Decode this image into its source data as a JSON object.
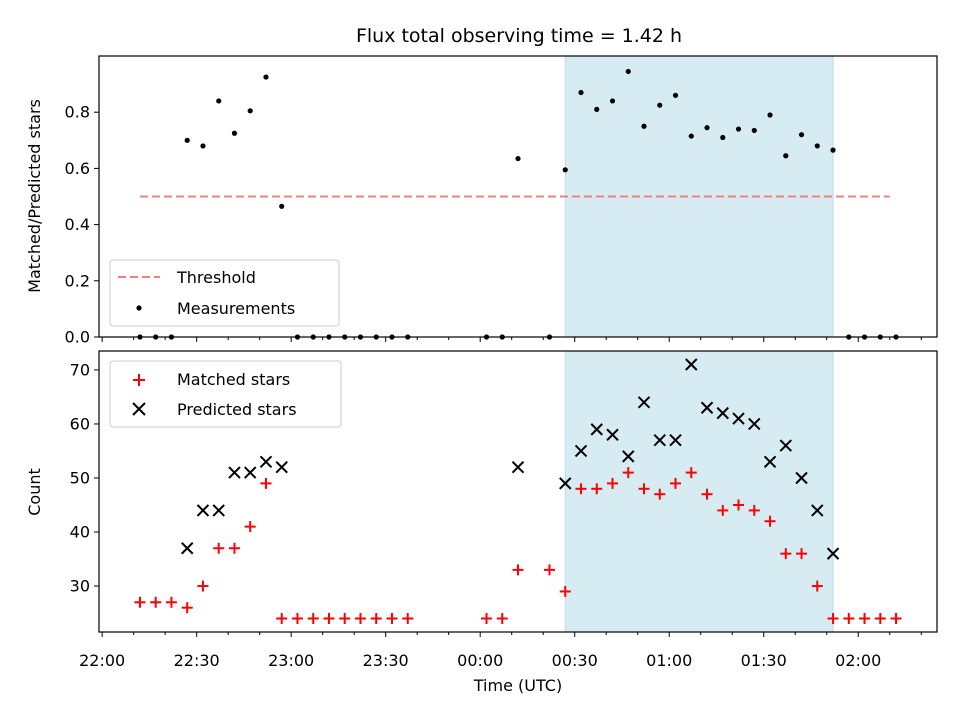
{
  "chart_data": [
    {
      "type": "scatter",
      "title": "Flux total observing time = 1.42 h",
      "ylabel": "Matched/Predicted stars",
      "xlabel": "",
      "ylim": [
        0,
        1.0
      ],
      "yticks": [
        0.0,
        0.2,
        0.4,
        0.6,
        0.8
      ],
      "ytick_labels": [
        "0.0",
        "0.2",
        "0.4",
        "0.6",
        "0.8"
      ],
      "x_unit": "time (UTC), minutes after 22:00",
      "shaded_span": {
        "x_start": 147,
        "x_end": 232,
        "color": "#add8e6"
      },
      "threshold": {
        "name": "Threshold",
        "value": 0.5,
        "x_start": 12,
        "x_end": 250,
        "color": "#f08080",
        "style": "dashed"
      },
      "legend": {
        "placement": "lower-left",
        "entries": [
          "Threshold",
          "Measurements"
        ]
      },
      "series": [
        {
          "name": "Measurements",
          "marker": "dot",
          "color": "#000000",
          "points": [
            [
              12,
              0.0
            ],
            [
              17,
              0.0
            ],
            [
              22,
              0.0
            ],
            [
              27,
              0.7
            ],
            [
              32,
              0.68
            ],
            [
              37,
              0.84
            ],
            [
              42,
              0.725
            ],
            [
              47,
              0.805
            ],
            [
              52,
              0.925
            ],
            [
              57,
              0.465
            ],
            [
              62,
              0.0
            ],
            [
              67,
              0.0
            ],
            [
              72,
              0.0
            ],
            [
              77,
              0.0
            ],
            [
              82,
              0.0
            ],
            [
              87,
              0.0
            ],
            [
              92,
              0.0
            ],
            [
              97,
              0.0
            ],
            [
              122,
              0.0
            ],
            [
              127,
              0.0
            ],
            [
              132,
              0.635
            ],
            [
              142,
              0.0
            ],
            [
              147,
              0.595
            ],
            [
              152,
              0.87
            ],
            [
              157,
              0.81
            ],
            [
              162,
              0.84
            ],
            [
              167,
              0.945
            ],
            [
              172,
              0.75
            ],
            [
              177,
              0.825
            ],
            [
              182,
              0.86
            ],
            [
              187,
              0.715
            ],
            [
              192,
              0.745
            ],
            [
              197,
              0.71
            ],
            [
              202,
              0.74
            ],
            [
              207,
              0.735
            ],
            [
              212,
              0.79
            ],
            [
              217,
              0.645
            ],
            [
              222,
              0.72
            ],
            [
              227,
              0.68
            ],
            [
              232,
              0.665
            ],
            [
              237,
              0.0
            ],
            [
              242,
              0.0
            ],
            [
              247,
              0.0
            ],
            [
              252,
              0.0
            ]
          ]
        }
      ]
    },
    {
      "type": "scatter",
      "title": "",
      "xlabel": "Time (UTC)",
      "ylabel": "Count",
      "ylim": [
        21.5,
        73.5
      ],
      "yticks": [
        30,
        40,
        50,
        60,
        70
      ],
      "ytick_labels": [
        "30",
        "40",
        "50",
        "60",
        "70"
      ],
      "xlim": [
        -1,
        265
      ],
      "xticks": [
        0,
        30,
        60,
        90,
        120,
        150,
        180,
        210,
        240
      ],
      "xtick_labels": [
        "22:00",
        "22:30",
        "23:00",
        "23:30",
        "00:00",
        "00:30",
        "01:00",
        "01:30",
        "02:00"
      ],
      "x_unit": "time (UTC), minutes after 22:00",
      "shaded_span": {
        "x_start": 147,
        "x_end": 232,
        "color": "#add8e6"
      },
      "legend": {
        "placement": "upper-left",
        "entries": [
          "Matched stars",
          "Predicted stars"
        ]
      },
      "series": [
        {
          "name": "Matched stars",
          "marker": "plus",
          "color": "#ff0000",
          "points": [
            [
              12,
              27
            ],
            [
              17,
              27
            ],
            [
              22,
              27
            ],
            [
              27,
              26
            ],
            [
              32,
              30
            ],
            [
              37,
              37
            ],
            [
              42,
              37
            ],
            [
              47,
              41
            ],
            [
              52,
              49
            ],
            [
              57,
              24
            ],
            [
              62,
              24
            ],
            [
              67,
              24
            ],
            [
              72,
              24
            ],
            [
              77,
              24
            ],
            [
              82,
              24
            ],
            [
              87,
              24
            ],
            [
              92,
              24
            ],
            [
              97,
              24
            ],
            [
              122,
              24
            ],
            [
              127,
              24
            ],
            [
              132,
              33
            ],
            [
              142,
              33
            ],
            [
              147,
              29
            ],
            [
              152,
              48
            ],
            [
              157,
              48
            ],
            [
              162,
              49
            ],
            [
              167,
              51
            ],
            [
              172,
              48
            ],
            [
              177,
              47
            ],
            [
              182,
              49
            ],
            [
              187,
              51
            ],
            [
              192,
              47
            ],
            [
              197,
              44
            ],
            [
              202,
              45
            ],
            [
              207,
              44
            ],
            [
              212,
              42
            ],
            [
              217,
              36
            ],
            [
              222,
              36
            ],
            [
              227,
              30
            ],
            [
              232,
              24
            ],
            [
              237,
              24
            ],
            [
              242,
              24
            ],
            [
              247,
              24
            ],
            [
              252,
              24
            ]
          ]
        },
        {
          "name": "Predicted stars",
          "marker": "x",
          "color": "#000000",
          "points": [
            [
              27,
              37
            ],
            [
              32,
              44
            ],
            [
              37,
              44
            ],
            [
              42,
              51
            ],
            [
              47,
              51
            ],
            [
              52,
              53
            ],
            [
              57,
              52
            ],
            [
              132,
              52
            ],
            [
              147,
              49
            ],
            [
              152,
              55
            ],
            [
              157,
              59
            ],
            [
              162,
              58
            ],
            [
              167,
              54
            ],
            [
              172,
              64
            ],
            [
              177,
              57
            ],
            [
              182,
              57
            ],
            [
              187,
              71
            ],
            [
              192,
              63
            ],
            [
              197,
              62
            ],
            [
              202,
              61
            ],
            [
              207,
              60
            ],
            [
              212,
              53
            ],
            [
              217,
              56
            ],
            [
              222,
              50
            ],
            [
              227,
              44
            ],
            [
              232,
              36
            ]
          ]
        }
      ]
    }
  ]
}
